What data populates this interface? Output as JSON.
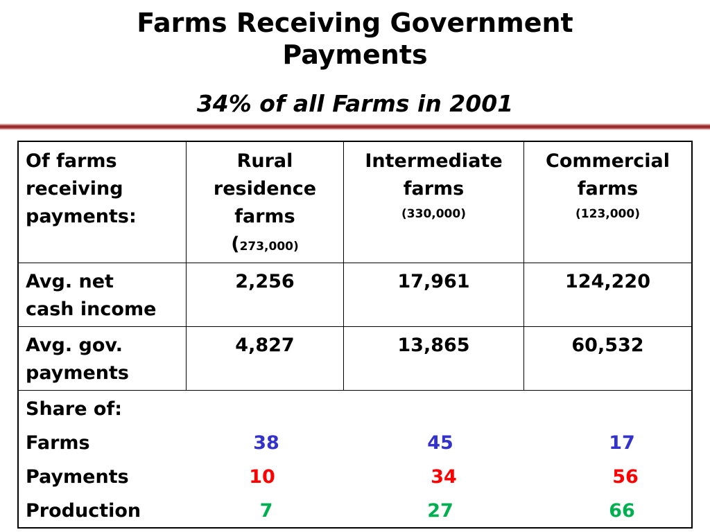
{
  "slide": {
    "title_line1": "Farms Receiving Government",
    "title_line2": "Payments",
    "subtitle": "34% of all Farms in 2001"
  },
  "table": {
    "header": {
      "row_label": [
        "Of farms",
        "receiving",
        "payments:"
      ],
      "columns": [
        {
          "name": [
            "Rural",
            "residence",
            "farms"
          ],
          "count_open": "(",
          "count": "273,000)"
        },
        {
          "name": [
            "Intermediate",
            "farms"
          ],
          "count": "(330,000)"
        },
        {
          "name": [
            "Commercial",
            "farms"
          ],
          "count": "(123,000)"
        }
      ]
    },
    "rows": [
      {
        "label": [
          "Avg. net",
          "cash income"
        ],
        "values": [
          "2,256",
          "17,961",
          "124,220"
        ]
      },
      {
        "label": [
          "Avg. gov.",
          "payments"
        ],
        "values": [
          "4,827",
          "13,865",
          "60,532"
        ]
      }
    ],
    "share": {
      "heading": "Share of:",
      "rows": [
        {
          "label": "Farms",
          "values": [
            "38",
            "45",
            "17"
          ],
          "color": "#3333cc"
        },
        {
          "label": "Payments",
          "values": [
            "10",
            "34",
            "56"
          ],
          "color": "#ff0000"
        },
        {
          "label": "Production",
          "values": [
            "7",
            "27",
            "66"
          ],
          "color": "#00b050"
        }
      ]
    }
  }
}
